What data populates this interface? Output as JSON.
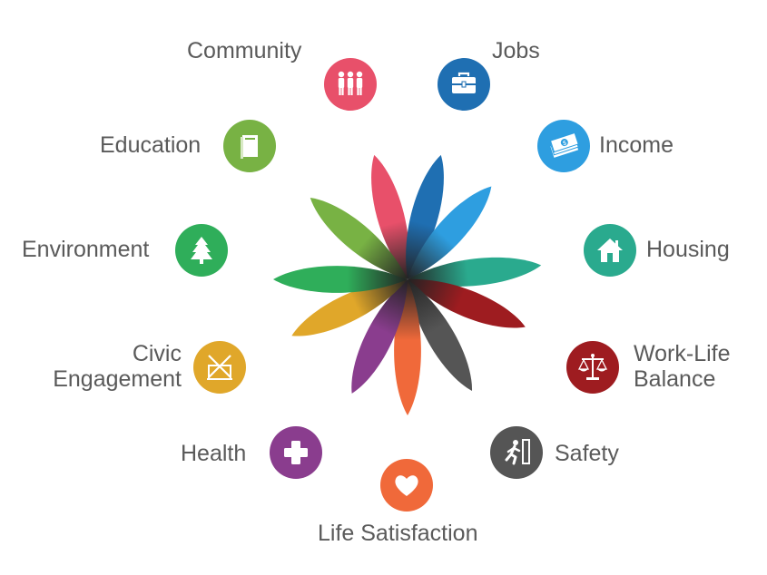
{
  "dimensions": [
    {
      "id": "community",
      "label": "Community",
      "color": "#e8506a",
      "icon": "people-icon"
    },
    {
      "id": "jobs",
      "label": "Jobs",
      "color": "#1f6fb2",
      "icon": "briefcase-icon"
    },
    {
      "id": "income",
      "label": "Income",
      "color": "#2e9ee0",
      "icon": "money-icon"
    },
    {
      "id": "housing",
      "label": "Housing",
      "color": "#2aaa8e",
      "icon": "house-icon"
    },
    {
      "id": "work_life",
      "label": "Work-Life Balance",
      "lines": [
        "Work-Life",
        "Balance"
      ],
      "color": "#9e1c20",
      "icon": "scales-icon"
    },
    {
      "id": "safety",
      "label": "Safety",
      "color": "#555555",
      "icon": "running-person-icon"
    },
    {
      "id": "life_satisfaction",
      "label": "Life Satisfaction",
      "color": "#f0693a",
      "icon": "heart-icon"
    },
    {
      "id": "health",
      "label": "Health",
      "color": "#8a3d8e",
      "icon": "health-cross-icon"
    },
    {
      "id": "civic",
      "label": "Civic Engagement",
      "lines": [
        "Civic",
        "Engagement"
      ],
      "color": "#e0a72a",
      "icon": "ballot-icon"
    },
    {
      "id": "environment",
      "label": "Environment",
      "color": "#2fae5a",
      "icon": "tree-icon"
    },
    {
      "id": "education",
      "label": "Education",
      "color": "#78b244",
      "icon": "book-icon"
    }
  ]
}
